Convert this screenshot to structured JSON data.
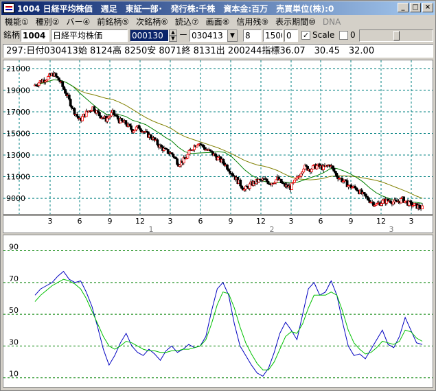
{
  "window": {
    "title": "1004 日経平均株価　週足　東証一部･　発行株:千株　資本金:百万　売買単位(株):0",
    "buttons": {
      "minimize": "_",
      "maximize": "□",
      "close": "×"
    }
  },
  "menu": {
    "items": [
      {
        "label": "機能①",
        "disabled": false
      },
      {
        "label": "種別②",
        "disabled": false
      },
      {
        "label": "バー④",
        "disabled": false
      },
      {
        "label": "前銘柄⑤",
        "disabled": false
      },
      {
        "label": "次銘柄⑥",
        "disabled": false
      },
      {
        "label": "読込⑦",
        "disabled": false
      },
      {
        "label": "画面⑧",
        "disabled": false
      },
      {
        "label": "信用残⑨",
        "disabled": false
      },
      {
        "label": "表示期間⑩",
        "disabled": false
      },
      {
        "label": "DNA",
        "disabled": true
      }
    ]
  },
  "toolbar": {
    "code_label": "銘柄",
    "code_value": "1004",
    "name_value": "日経平均株価",
    "start_value": "000130",
    "separator": "ー",
    "end_value": "030413",
    "field_a": "8",
    "field_b": "1500",
    "field_c": "0",
    "scale_checked": "✓",
    "scale_label": "Scale",
    "field_d": "0"
  },
  "info": {
    "text": "297:日付030413始 8124高 8250安 8071終 8131出 200244指標36.07　30.45　32.00"
  },
  "colors": {
    "up": "#ff0000",
    "down": "#000000",
    "ma_short": "#008000",
    "ma_long": "#808000",
    "grid": "#008080",
    "osc_main": "#0000c0",
    "osc_signal": "#00c000",
    "osc_grid": "#008000"
  },
  "chart_data": [
    {
      "type": "candlestick",
      "yticks": [
        9000,
        11000,
        13000,
        15000,
        17000,
        19000,
        21000
      ],
      "ylim": [
        7800,
        21500
      ],
      "x_tick_labels": [
        "3",
        "6",
        "9",
        "12",
        "3",
        "6",
        "9",
        "12",
        "3",
        "6",
        "9",
        "12",
        "3"
      ],
      "year_labels": [
        "1",
        "2",
        "3"
      ],
      "close_series": [
        19400,
        19800,
        20100,
        20500,
        19800,
        18600,
        17200,
        16200,
        16900,
        17400,
        16700,
        16300,
        16900,
        16200,
        15900,
        15300,
        15600,
        15000,
        14600,
        13900,
        13400,
        13100,
        12200,
        12600,
        13600,
        14200,
        13600,
        13200,
        12700,
        12200,
        11400,
        10600,
        9800,
        10300,
        10600,
        10700,
        10400,
        10800,
        10200,
        10000,
        10800,
        11900,
        11700,
        12000,
        11800,
        12100,
        11100,
        10600,
        10100,
        9900,
        9300,
        8800,
        8400,
        8700,
        8800,
        8600,
        8900,
        8500,
        8300,
        8100
      ],
      "ma_short_label": "",
      "ma_long_label": ""
    },
    {
      "type": "line",
      "yticks": [
        10,
        30,
        50,
        70,
        90
      ],
      "ylim": [
        6,
        98
      ],
      "series": [
        {
          "name": "",
          "values": [
            62,
            66,
            68,
            70,
            74,
            77,
            72,
            70,
            71,
            64,
            55,
            42,
            28,
            18,
            24,
            32,
            38,
            30,
            26,
            24,
            28,
            25,
            21,
            27,
            30,
            26,
            28,
            31,
            29,
            30,
            36,
            52,
            66,
            70,
            62,
            44,
            30,
            24,
            18,
            13,
            11,
            16,
            26,
            38,
            45,
            40,
            34,
            50,
            66,
            70,
            62,
            64,
            71,
            62,
            45,
            30,
            24,
            25,
            22,
            28,
            34,
            40,
            31,
            29,
            36,
            48,
            40,
            32,
            31
          ]
        },
        {
          "name": "",
          "values": [
            58,
            62,
            65,
            68,
            70,
            72,
            71,
            69,
            66,
            60,
            52,
            44,
            36,
            30,
            28,
            30,
            33,
            32,
            30,
            28,
            27,
            27,
            26,
            26,
            27,
            27,
            28,
            28,
            29,
            30,
            34,
            44,
            56,
            64,
            63,
            54,
            42,
            32,
            25,
            19,
            15,
            15,
            20,
            28,
            36,
            39,
            38,
            44,
            54,
            62,
            62,
            62,
            64,
            62,
            52,
            40,
            32,
            28,
            25,
            26,
            29,
            33,
            32,
            31,
            33,
            40,
            39,
            35,
            33
          ]
        }
      ]
    }
  ]
}
